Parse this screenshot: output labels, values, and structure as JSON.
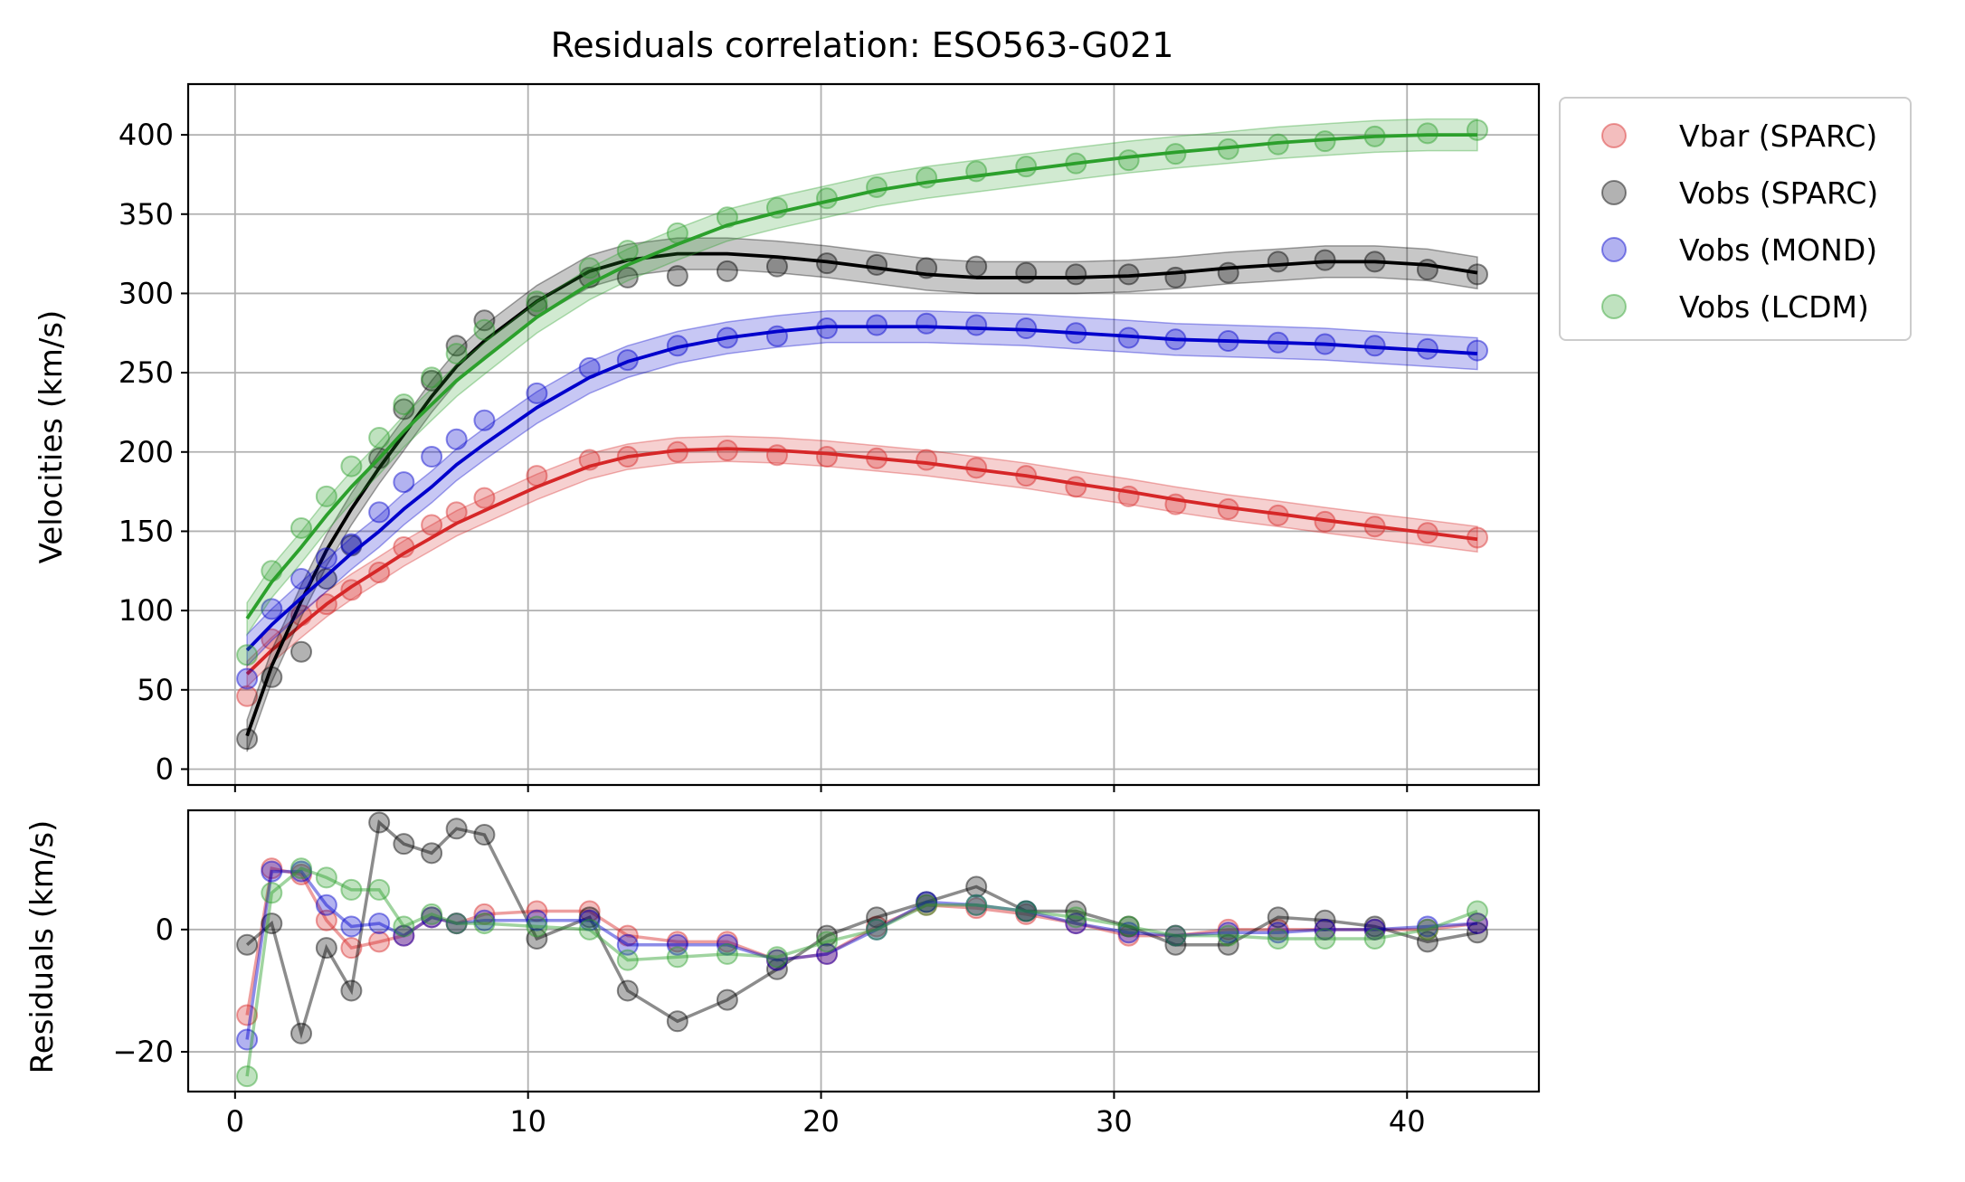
{
  "chart_data": [
    {
      "type": "line",
      "title": "Residuals correlation: ESO563-G021",
      "ylabel": "Velocities (km/s)",
      "xlim": [
        -1.6,
        44.5
      ],
      "ylim": [
        -10,
        432
      ],
      "xticks": [
        0,
        10,
        20,
        30,
        40
      ],
      "yticks": [
        0,
        50,
        100,
        150,
        200,
        250,
        300,
        350,
        400
      ],
      "grid": true,
      "legend_position": "outside-top-right",
      "x": [
        0.41,
        1.25,
        2.26,
        3.12,
        3.97,
        4.92,
        5.76,
        6.71,
        7.56,
        8.51,
        10.3,
        12.1,
        13.4,
        15.1,
        16.8,
        18.5,
        20.2,
        21.9,
        23.6,
        25.3,
        27.0,
        28.7,
        30.5,
        32.1,
        33.9,
        35.6,
        37.2,
        38.9,
        40.7,
        42.4
      ],
      "series": [
        {
          "name": "Vbar (SPARC)",
          "color": "#d62728",
          "points": [
            46,
            82,
            97,
            104,
            113,
            124,
            140,
            154,
            162,
            171,
            185,
            195,
            197,
            200,
            201,
            198,
            197,
            196,
            195,
            190,
            185,
            178,
            172,
            167,
            164,
            160,
            156,
            153,
            149,
            146
          ],
          "fit": [
            60,
            75,
            91,
            104,
            115,
            126,
            136,
            146,
            155,
            163,
            178,
            191,
            197,
            201,
            202,
            201,
            199,
            196,
            193,
            189,
            185,
            180,
            175,
            170,
            165,
            161,
            157,
            153,
            149,
            145
          ],
          "band": 8
        },
        {
          "name": "Vobs (SPARC)",
          "color": "#000000",
          "points": [
            19,
            58,
            74,
            120,
            141,
            196,
            227,
            245,
            267,
            283,
            292,
            310,
            310,
            311,
            314,
            317,
            319,
            318,
            316,
            317,
            313,
            312,
            312,
            310,
            313,
            320,
            321,
            320,
            315,
            312
          ],
          "fit": [
            21,
            65,
            106,
            138,
            164,
            190,
            211,
            235,
            254,
            270,
            295,
            314,
            321,
            325,
            325,
            323,
            320,
            316,
            312,
            310,
            310,
            310,
            311,
            313,
            316,
            318,
            320,
            320,
            318,
            313
          ],
          "band": 10
        },
        {
          "name": "Vobs (MOND)",
          "color": "#0000cc",
          "points": [
            57,
            101,
            120,
            133,
            142,
            162,
            181,
            197,
            208,
            220,
            237,
            253,
            258,
            267,
            272,
            273,
            278,
            280,
            281,
            280,
            278,
            275,
            272,
            271,
            270,
            269,
            268,
            267,
            265,
            264
          ],
          "fit": [
            75,
            91,
            108,
            122,
            136,
            150,
            164,
            178,
            192,
            205,
            228,
            247,
            257,
            266,
            272,
            276,
            279,
            279,
            279,
            278,
            277,
            275,
            273,
            271,
            270,
            269,
            268,
            266,
            264,
            262
          ],
          "band": 10
        },
        {
          "name": "Vobs (LCDM)",
          "color": "#2ca02c",
          "points": [
            72,
            125,
            152,
            172,
            191,
            209,
            230,
            247,
            262,
            277,
            295,
            316,
            327,
            338,
            348,
            354,
            360,
            367,
            373,
            377,
            380,
            382,
            384,
            388,
            391,
            394,
            396,
            399,
            401,
            403
          ],
          "fit": [
            95,
            118,
            140,
            160,
            178,
            196,
            213,
            230,
            245,
            259,
            285,
            306,
            318,
            331,
            343,
            351,
            358,
            365,
            370,
            374,
            378,
            382,
            386,
            389,
            392,
            395,
            397,
            399,
            400,
            400
          ],
          "band": 10
        }
      ]
    },
    {
      "type": "line",
      "ylabel": "Residuals (km/s)",
      "xlim": [
        -1.6,
        44.5
      ],
      "ylim": [
        -26.5,
        19.5
      ],
      "xticks": [
        0,
        10,
        20,
        30,
        40
      ],
      "yticks": [
        -20,
        0
      ],
      "grid": true,
      "x": [
        0.41,
        1.25,
        2.26,
        3.12,
        3.97,
        4.92,
        5.76,
        6.71,
        7.56,
        8.51,
        10.3,
        12.1,
        13.4,
        15.1,
        16.8,
        18.5,
        20.2,
        21.9,
        23.6,
        25.3,
        27.0,
        28.7,
        30.5,
        32.1,
        33.9,
        35.6,
        37.2,
        38.9,
        40.7,
        42.4
      ],
      "series": [
        {
          "name": "Vbar (SPARC)",
          "color": "#d62728",
          "values": [
            -14,
            10,
            9,
            1.5,
            -3,
            -2,
            -1,
            2,
            1,
            2.5,
            3,
            3,
            -1,
            -2,
            -2,
            -5,
            -4,
            0.5,
            4,
            3.5,
            2.5,
            1,
            -1,
            -1,
            0,
            0,
            0,
            0,
            0,
            1
          ]
        },
        {
          "name": "Vobs (SPARC)",
          "color": "#000000",
          "values": [
            -2.5,
            1,
            -17,
            -3,
            -10,
            17.5,
            14,
            12.5,
            16.5,
            15.5,
            -1.5,
            2,
            -10,
            -15,
            -11.5,
            -6.5,
            -1,
            2,
            4.5,
            7,
            3,
            3,
            0.5,
            -2.5,
            -2.5,
            2,
            1.5,
            0.5,
            -2,
            -0.5
          ]
        },
        {
          "name": "Vobs (MOND)",
          "color": "#0000cc",
          "values": [
            -18,
            9.5,
            9.5,
            4,
            0.5,
            1,
            -1,
            2,
            1,
            1.5,
            1.5,
            1.5,
            -2.5,
            -2.5,
            -2.5,
            -5,
            -4,
            0,
            4.5,
            4,
            3,
            1,
            -0.5,
            -1,
            -0.5,
            -0.5,
            0,
            0,
            0.5,
            1
          ]
        },
        {
          "name": "Vobs (LCDM)",
          "color": "#2ca02c",
          "values": [
            -24,
            6,
            10,
            8.5,
            6.5,
            6.5,
            0.5,
            2.5,
            1,
            1,
            0.5,
            0,
            -5,
            -4.5,
            -4,
            -4.5,
            -2,
            0,
            4,
            4,
            3,
            2,
            0.5,
            -1,
            -1,
            -1.5,
            -1.5,
            -1.5,
            0,
            3
          ]
        }
      ]
    }
  ]
}
